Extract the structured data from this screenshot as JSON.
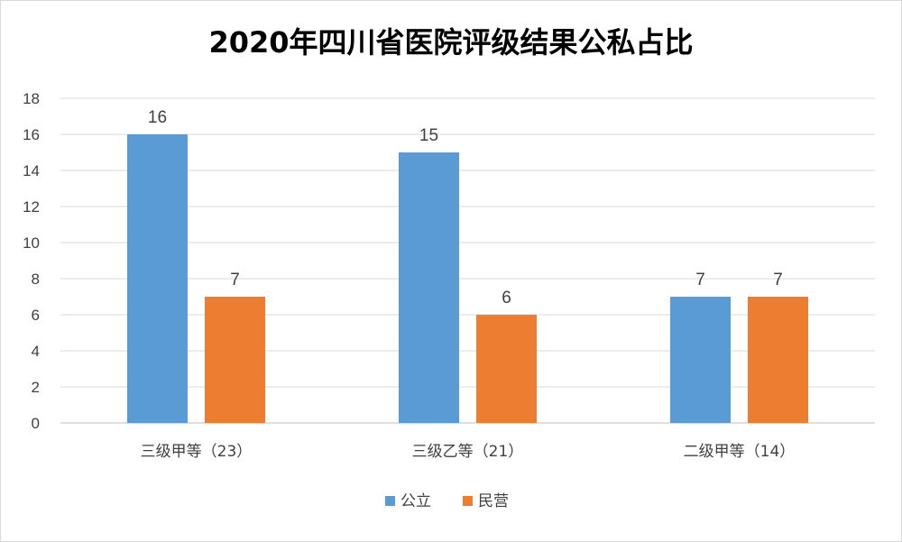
{
  "chart_data": {
    "type": "bar",
    "title": "2020年四川省医院评级结果公私占比",
    "categories": [
      "三级甲等（23）",
      "三级乙等（21）",
      "二级甲等（14）"
    ],
    "series": [
      {
        "name": "公立",
        "values": [
          16,
          15,
          7
        ],
        "color": "#5B9BD5"
      },
      {
        "name": "民营",
        "values": [
          7,
          6,
          7
        ],
        "color": "#ED7D31"
      }
    ],
    "ylim": [
      0,
      18
    ],
    "yticks": [
      0,
      2,
      4,
      6,
      8,
      10,
      12,
      14,
      16,
      18
    ],
    "grid": true,
    "legend_position": "bottom",
    "data_labels": true
  }
}
